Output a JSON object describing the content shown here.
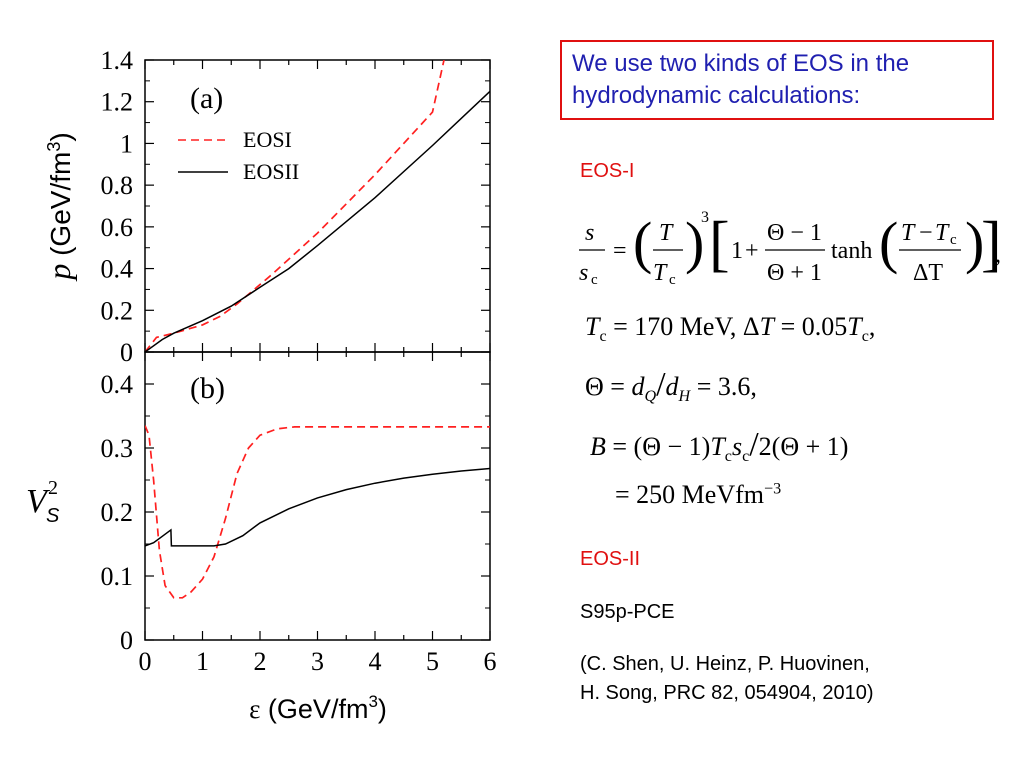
{
  "chart_data": [
    {
      "type": "line",
      "panel": "(a)",
      "xlabel": "ε (GeV/fm³)",
      "ylabel": "p (GeV/fm³)",
      "xlim": [
        0,
        6
      ],
      "ylim": [
        0,
        1.4
      ],
      "yticks": [
        "0",
        "0.2",
        "0.4",
        "0.6",
        "0.8",
        "1",
        "1.2",
        "1.4"
      ],
      "legend": "upper-left",
      "series": [
        {
          "name": "EOSI",
          "color": "#ff2020",
          "dash": true,
          "x": [
            0,
            0.2,
            0.5,
            1.0,
            1.3,
            1.6,
            1.9,
            2.2,
            2.6,
            3.0,
            4.0,
            5.0,
            5.2
          ],
          "y": [
            0,
            0.07,
            0.09,
            0.13,
            0.17,
            0.23,
            0.3,
            0.37,
            0.47,
            0.57,
            0.85,
            1.15,
            1.4
          ]
        },
        {
          "name": "EOSII",
          "color": "#000000",
          "dash": false,
          "x": [
            0,
            0.3,
            0.5,
            1.0,
            1.5,
            2.0,
            2.5,
            3.0,
            4.0,
            5.0,
            6.0
          ],
          "y": [
            0,
            0.06,
            0.09,
            0.15,
            0.22,
            0.31,
            0.4,
            0.51,
            0.74,
            0.99,
            1.25
          ]
        }
      ]
    },
    {
      "type": "line",
      "panel": "(b)",
      "xlabel": "ε (GeV/fm³)",
      "ylabel": "V_S²",
      "xlim": [
        0,
        6
      ],
      "ylim": [
        0,
        0.45
      ],
      "yticks": [
        "0",
        "0.1",
        "0.2",
        "0.3",
        "0.4"
      ],
      "xticks": [
        "0",
        "1",
        "2",
        "3",
        "4",
        "5",
        "6"
      ],
      "series": [
        {
          "name": "EOSI",
          "color": "#ff2020",
          "dash": true,
          "x": [
            0,
            0.07,
            0.15,
            0.25,
            0.35,
            0.5,
            0.65,
            0.8,
            1.0,
            1.2,
            1.4,
            1.6,
            1.8,
            2.0,
            2.3,
            2.6,
            3.0,
            4.0,
            5.0,
            6.0
          ],
          "y": [
            0.335,
            0.32,
            0.25,
            0.14,
            0.085,
            0.066,
            0.066,
            0.075,
            0.095,
            0.13,
            0.19,
            0.26,
            0.3,
            0.32,
            0.33,
            0.333,
            0.333,
            0.333,
            0.333,
            0.333
          ]
        },
        {
          "name": "EOSII",
          "color": "#000000",
          "dash": false,
          "x": [
            0,
            0.15,
            0.3,
            0.45,
            0.46,
            0.6,
            0.9,
            1.2,
            1.4,
            1.7,
            2.0,
            2.5,
            3.0,
            3.5,
            4.0,
            4.5,
            5.0,
            5.5,
            6.0
          ],
          "y": [
            0.147,
            0.152,
            0.162,
            0.172,
            0.147,
            0.147,
            0.147,
            0.147,
            0.15,
            0.163,
            0.183,
            0.205,
            0.222,
            0.235,
            0.245,
            0.253,
            0.259,
            0.264,
            0.268
          ]
        }
      ]
    }
  ],
  "note": {
    "line1": "We use two kinds of EOS in the",
    "line2": "hydrodynamic calculations:"
  },
  "eos1": {
    "header": "EOS-I"
  },
  "eos2": {
    "header": "EOS-II",
    "name": "S95p-PCE",
    "ref_line1": "(C. Shen, U. Heinz, P. Huovinen,",
    "ref_line2": "H. Song, PRC 82, 054904, 2010)"
  },
  "equations": {
    "tc": "170  MeV,",
    "dt": "0.05",
    "theta": "3.6,",
    "b": "250  MeVfm"
  }
}
